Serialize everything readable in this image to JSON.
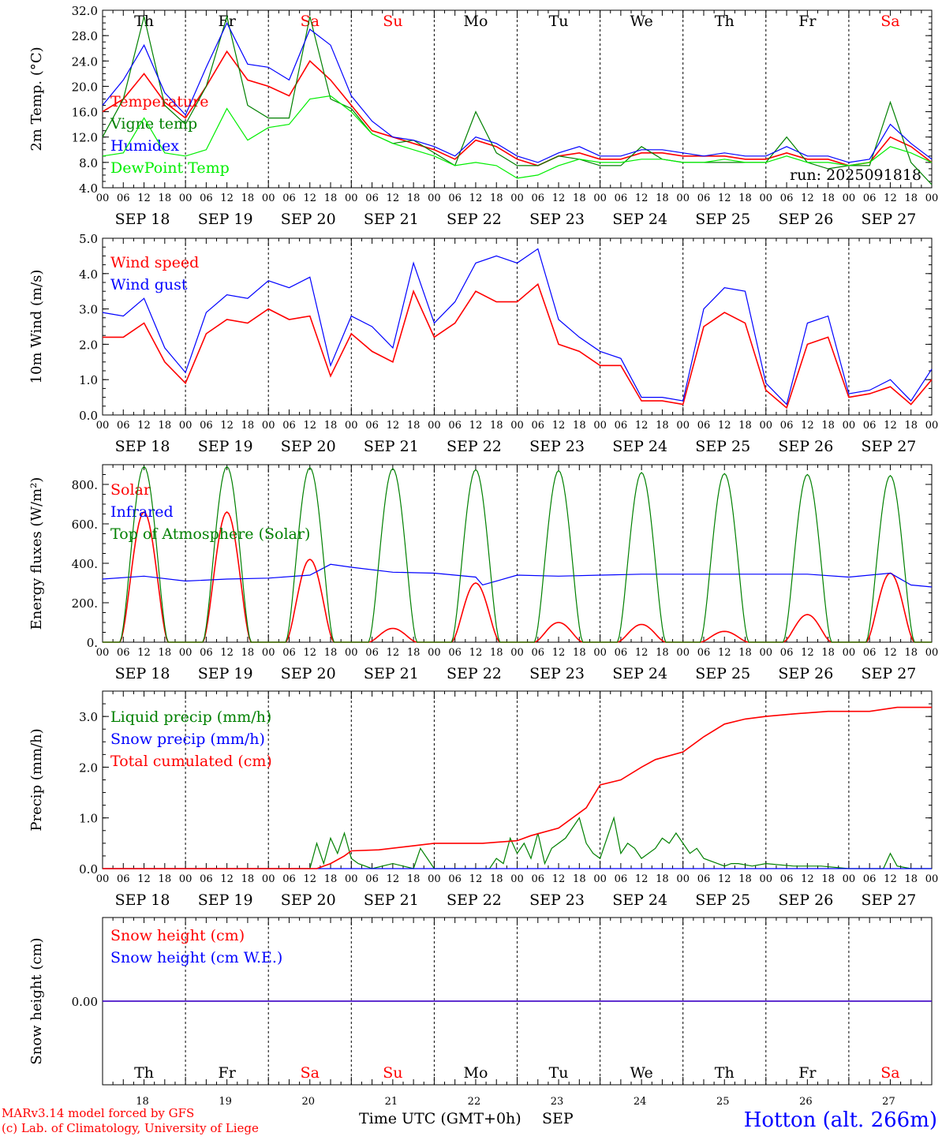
{
  "station": {
    "name": "Hotton (alt. 266m)",
    "run": "run: 2025091818",
    "credit1": "MARv3.14 model forced by GFS",
    "credit2": "(c) Lab. of Climatology, University of Liege",
    "xaxis_title": "Time UTC (GMT+0h)",
    "month": "SEP"
  },
  "colors": {
    "red": "#ff0000",
    "green": "#008000",
    "blue": "#0000ff",
    "lightgreen": "#00ee00",
    "weekend": "#ff0000",
    "weekday": "#000000"
  },
  "days": [
    {
      "abbr": "Th",
      "date": "SEP 18",
      "num": "18",
      "weekend": false
    },
    {
      "abbr": "Fr",
      "date": "SEP 19",
      "num": "19",
      "weekend": false
    },
    {
      "abbr": "Sa",
      "date": "SEP 20",
      "num": "20",
      "weekend": true
    },
    {
      "abbr": "Su",
      "date": "SEP 21",
      "num": "21",
      "weekend": true
    },
    {
      "abbr": "Mo",
      "date": "SEP 22",
      "num": "22",
      "weekend": false
    },
    {
      "abbr": "Tu",
      "date": "SEP 23",
      "num": "23",
      "weekend": false
    },
    {
      "abbr": "We",
      "date": "SEP 24",
      "num": "24",
      "weekend": false
    },
    {
      "abbr": "Th",
      "date": "SEP 25",
      "num": "25",
      "weekend": false
    },
    {
      "abbr": "Fr",
      "date": "SEP 26",
      "num": "26",
      "weekend": false
    },
    {
      "abbr": "Sa",
      "date": "SEP 27",
      "num": "27",
      "weekend": true
    }
  ],
  "hour_ticks": [
    "00",
    "06",
    "12",
    "18"
  ],
  "end_tick": "00",
  "chart_data": [
    {
      "id": "temp",
      "type": "line",
      "ylabel": "2m Temp. (°C)",
      "ylim": [
        4.0,
        32.0
      ],
      "yticks": [
        "4.0",
        "8.0",
        "12.0",
        "16.0",
        "20.0",
        "24.0",
        "28.0",
        "32.0"
      ],
      "ytick_values": [
        4,
        8,
        12,
        16,
        20,
        24,
        28,
        32
      ],
      "x_hours": [
        0,
        6,
        12,
        18,
        24,
        30,
        36,
        42,
        48,
        54,
        60,
        66,
        72,
        78,
        84,
        90,
        96,
        102,
        108,
        114,
        120,
        126,
        132,
        138,
        144,
        150,
        156,
        162,
        168,
        174,
        180,
        186,
        192,
        198,
        204,
        210,
        216,
        222,
        228,
        234,
        240
      ],
      "series": [
        {
          "name": "Temperature",
          "color": "red",
          "values": [
            16.0,
            18.0,
            22.0,
            17.5,
            15.0,
            20.0,
            25.5,
            21.0,
            20.0,
            18.5,
            24.0,
            21.0,
            17.0,
            13.0,
            12.0,
            11.0,
            10.0,
            8.5,
            11.5,
            10.5,
            8.5,
            7.5,
            9.0,
            9.5,
            8.5,
            8.5,
            9.5,
            9.5,
            9.0,
            9.0,
            9.0,
            8.5,
            8.5,
            9.5,
            8.5,
            8.5,
            7.5,
            8.0,
            12.0,
            10.5,
            8.0
          ]
        },
        {
          "name": "Vigne temp",
          "color": "green",
          "values": [
            12.0,
            18.0,
            31.0,
            17.0,
            14.0,
            20.0,
            31.0,
            17.0,
            15.0,
            15.0,
            31.0,
            18.0,
            16.5,
            12.5,
            11.0,
            11.5,
            9.5,
            7.5,
            16.0,
            9.5,
            7.5,
            7.5,
            9.0,
            8.5,
            7.5,
            7.5,
            10.5,
            8.5,
            8.0,
            8.0,
            8.0,
            8.0,
            8.0,
            12.0,
            8.0,
            7.0,
            7.5,
            7.5,
            17.5,
            8.0,
            4.5
          ]
        },
        {
          "name": "Humidex",
          "color": "blue",
          "values": [
            17.0,
            21.0,
            26.5,
            19.0,
            15.5,
            23.0,
            30.0,
            23.5,
            23.0,
            21.0,
            29.0,
            26.5,
            18.5,
            14.5,
            12.0,
            11.5,
            10.5,
            9.0,
            12.0,
            11.0,
            9.0,
            8.0,
            9.5,
            10.5,
            9.0,
            9.0,
            10.0,
            10.0,
            9.5,
            9.0,
            9.5,
            9.0,
            9.0,
            10.5,
            9.0,
            9.0,
            8.0,
            8.5,
            14.0,
            11.0,
            8.5
          ]
        },
        {
          "name": "DewPoint Temp",
          "color": "lightgreen",
          "values": [
            9.0,
            9.5,
            15.0,
            9.5,
            9.0,
            10.0,
            16.5,
            11.5,
            13.5,
            14.0,
            18.0,
            18.5,
            16.0,
            12.5,
            11.0,
            10.0,
            9.0,
            7.5,
            8.0,
            7.5,
            5.5,
            6.0,
            7.5,
            8.5,
            8.0,
            8.0,
            8.5,
            8.5,
            8.0,
            8.0,
            8.5,
            8.0,
            8.0,
            9.0,
            8.0,
            8.0,
            7.5,
            8.0,
            10.5,
            9.5,
            8.0
          ]
        }
      ]
    },
    {
      "id": "wind",
      "type": "line",
      "ylabel": "10m Wind (m/s)",
      "ylim": [
        0.0,
        5.0
      ],
      "yticks": [
        "0.0",
        "1.0",
        "2.0",
        "3.0",
        "4.0",
        "5.0"
      ],
      "ytick_values": [
        0,
        1,
        2,
        3,
        4,
        5
      ],
      "x_hours": [
        0,
        6,
        12,
        18,
        24,
        30,
        36,
        42,
        48,
        54,
        60,
        66,
        72,
        78,
        84,
        90,
        96,
        102,
        108,
        114,
        120,
        126,
        132,
        138,
        144,
        150,
        156,
        162,
        168,
        174,
        180,
        186,
        192,
        198,
        204,
        210,
        216,
        222,
        228,
        234,
        240
      ],
      "series": [
        {
          "name": "Wind speed",
          "color": "red",
          "values": [
            2.2,
            2.2,
            2.6,
            1.5,
            0.9,
            2.3,
            2.7,
            2.6,
            3.0,
            2.7,
            2.8,
            1.1,
            2.3,
            1.8,
            1.5,
            3.5,
            2.2,
            2.6,
            3.5,
            3.2,
            3.2,
            3.7,
            2.0,
            1.8,
            1.4,
            1.4,
            0.4,
            0.4,
            0.3,
            2.5,
            2.9,
            2.6,
            0.7,
            0.2,
            2.0,
            2.2,
            0.5,
            0.6,
            0.8,
            0.3,
            1.0
          ]
        },
        {
          "name": "Wind gust",
          "color": "blue",
          "values": [
            2.9,
            2.8,
            3.3,
            1.9,
            1.2,
            2.9,
            3.4,
            3.3,
            3.8,
            3.6,
            3.9,
            1.4,
            2.8,
            2.5,
            1.9,
            4.3,
            2.6,
            3.2,
            4.3,
            4.5,
            4.3,
            4.7,
            2.7,
            2.2,
            1.8,
            1.6,
            0.5,
            0.5,
            0.4,
            3.0,
            3.6,
            3.5,
            0.9,
            0.3,
            2.6,
            2.8,
            0.6,
            0.7,
            1.0,
            0.4,
            1.3
          ]
        }
      ]
    },
    {
      "id": "energy",
      "type": "line",
      "ylabel": "Energy fluxes (W/m²)",
      "ylim": [
        0,
        900
      ],
      "yticks": [
        "0.",
        "200.",
        "400.",
        "600.",
        "800."
      ],
      "ytick_values": [
        0,
        200,
        400,
        600,
        800
      ],
      "daily_peak_hour": 13,
      "series": [
        {
          "name": "Solar",
          "color": "red",
          "daily_max": [
            660,
            660,
            420,
            70,
            300,
            100,
            90,
            55,
            140,
            350
          ]
        },
        {
          "name": "Infrared",
          "color": "blue",
          "x_hours": [
            0,
            12,
            24,
            36,
            48,
            60,
            66,
            72,
            84,
            96,
            108,
            110,
            120,
            132,
            144,
            156,
            168,
            180,
            192,
            204,
            216,
            228,
            234,
            240
          ],
          "values": [
            320,
            335,
            310,
            320,
            325,
            340,
            395,
            380,
            355,
            350,
            330,
            290,
            340,
            335,
            340,
            345,
            345,
            345,
            345,
            345,
            330,
            350,
            290,
            280
          ]
        },
        {
          "name": "Top of Atmosphere (Solar)",
          "color": "green",
          "daily_max": [
            890,
            890,
            885,
            880,
            875,
            870,
            860,
            855,
            850,
            845
          ]
        }
      ]
    },
    {
      "id": "precip",
      "type": "line",
      "ylabel": "Precip (mm/h)",
      "ylim": [
        0.0,
        3.5
      ],
      "yticks": [
        "0.0",
        "1.0",
        "2.0",
        "3.0"
      ],
      "ytick_values": [
        0,
        1,
        2,
        3
      ],
      "series": [
        {
          "name": "Liquid precip (mm/h)",
          "color": "green",
          "x_hours": [
            0,
            60,
            62,
            64,
            66,
            68,
            70,
            72,
            74,
            78,
            84,
            90,
            92,
            96,
            112,
            114,
            116,
            118,
            120,
            122,
            124,
            126,
            128,
            130,
            134,
            138,
            140,
            142,
            144,
            148,
            150,
            152,
            154,
            156,
            160,
            162,
            164,
            166,
            170,
            172,
            174,
            178,
            180,
            182,
            184,
            188,
            192,
            200,
            208,
            216,
            226,
            228,
            230,
            234,
            240
          ],
          "values": [
            0,
            0,
            0.5,
            0.1,
            0.6,
            0.3,
            0.7,
            0.2,
            0.1,
            0,
            0.1,
            0,
            0.4,
            0,
            0,
            0.2,
            0.1,
            0.6,
            0.3,
            0.5,
            0.2,
            0.7,
            0.1,
            0.4,
            0.6,
            1.0,
            0.5,
            0.3,
            0.2,
            1.0,
            0.3,
            0.5,
            0.4,
            0.2,
            0.4,
            0.6,
            0.5,
            0.7,
            0.3,
            0.4,
            0.2,
            0.1,
            0.05,
            0.1,
            0.1,
            0.05,
            0.1,
            0.05,
            0.05,
            0.0,
            0.0,
            0.3,
            0.05,
            0.0,
            0.0
          ]
        },
        {
          "name": "Snow precip (mm/h)",
          "color": "blue",
          "x_hours": [
            0,
            240
          ],
          "values": [
            0,
            0
          ]
        },
        {
          "name": "Total cumulated (cm)",
          "color": "red",
          "x_hours": [
            0,
            62,
            66,
            70,
            72,
            80,
            90,
            96,
            110,
            120,
            124,
            132,
            140,
            144,
            150,
            156,
            160,
            168,
            174,
            180,
            186,
            192,
            200,
            210,
            222,
            230,
            240
          ],
          "values": [
            0,
            0,
            0.1,
            0.25,
            0.35,
            0.37,
            0.45,
            0.5,
            0.5,
            0.55,
            0.65,
            0.8,
            1.2,
            1.65,
            1.75,
            2.0,
            2.15,
            2.3,
            2.6,
            2.85,
            2.95,
            3.0,
            3.05,
            3.1,
            3.1,
            3.18,
            3.18
          ]
        }
      ]
    },
    {
      "id": "snow",
      "type": "line",
      "ylabel": "Snow height (cm)",
      "ylim": [
        -1,
        1
      ],
      "yticks": [
        "0.00"
      ],
      "ytick_values": [
        0
      ],
      "series": [
        {
          "name": "Snow height (cm)",
          "color": "red",
          "x_hours": [
            0,
            240
          ],
          "values": [
            0,
            0
          ]
        },
        {
          "name": "Snow height (cm W.E.)",
          "color": "blue",
          "x_hours": [
            0,
            240
          ],
          "values": [
            0,
            0
          ]
        }
      ]
    }
  ]
}
